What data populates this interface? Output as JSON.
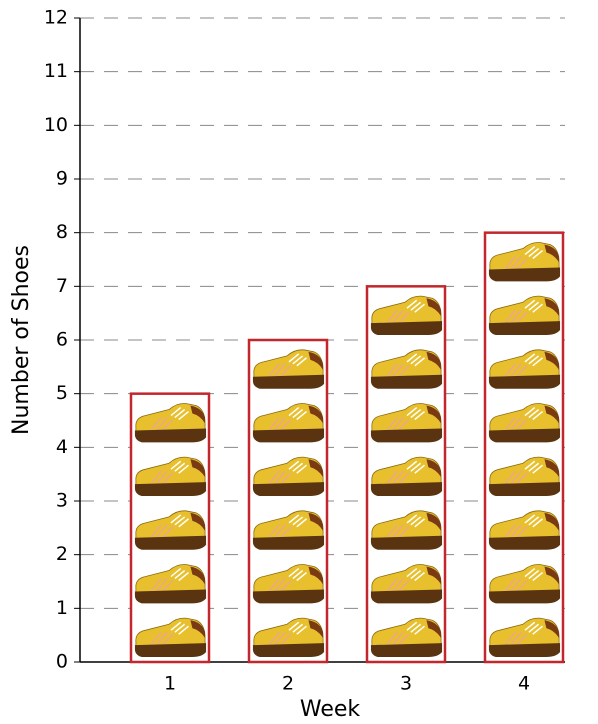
{
  "chart_data": {
    "type": "pictograph",
    "x_label": "Week",
    "y_label": "Number of Shoes",
    "categories": [
      "1",
      "2",
      "3",
      "4"
    ],
    "values": [
      5,
      6,
      7,
      8
    ],
    "color": "#c1272d",
    "ylim": [
      0,
      12
    ],
    "yticks": [
      0,
      1,
      2,
      3,
      4,
      5,
      6,
      7,
      8,
      9,
      10,
      11,
      12
    ],
    "grid": true
  }
}
